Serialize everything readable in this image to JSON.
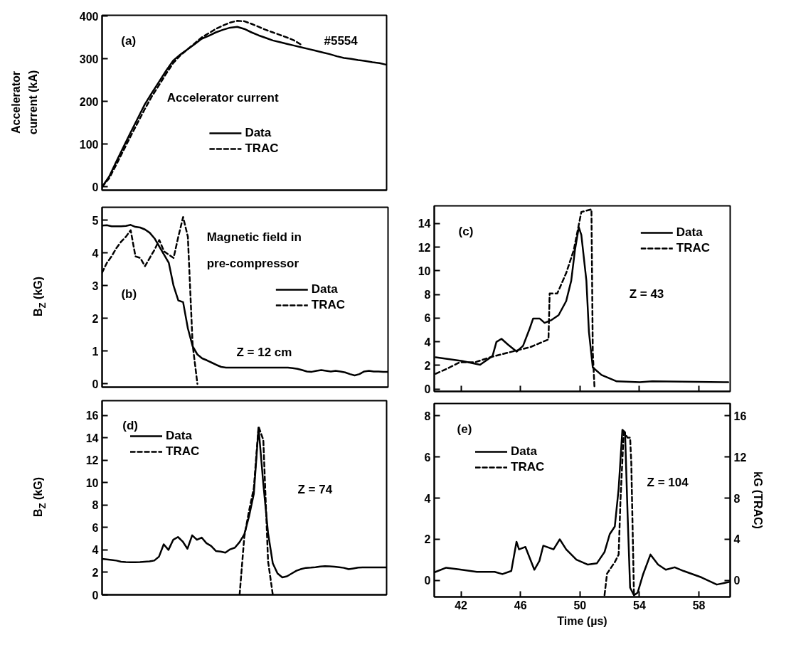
{
  "chart_data": [
    {
      "type": "line",
      "ylabel": "Accelerator current (kA)",
      "annotations": [
        "(a)",
        "#5554",
        "Accelerator current"
      ],
      "categories": [
        null,
        null,
        null,
        null,
        null,
        null,
        null,
        null,
        null,
        null,
        null,
        null,
        null,
        null,
        null,
        null,
        null,
        null,
        null,
        null,
        null,
        null,
        null,
        null,
        null,
        null,
        null,
        null,
        null,
        null,
        null,
        null,
        null,
        null,
        null,
        null,
        null,
        null,
        null,
        null,
        null
      ],
      "ylim": [
        -8,
        402
      ],
      "yticks": [
        0,
        100,
        200,
        300,
        400
      ],
      "tick_labels": "y",
      "legend": "bottom",
      "series": [
        {
          "name": "Data",
          "color": "#000000",
          "line_style": "solid",
          "values": [
            0,
            24,
            59,
            93,
            127,
            160,
            193,
            220,
            246,
            272,
            296,
            310,
            322,
            334,
            347,
            354,
            362,
            368,
            373,
            375,
            370,
            362,
            355,
            349,
            343,
            339,
            335,
            331,
            327,
            323,
            319,
            315,
            311,
            306,
            302,
            300,
            297,
            295,
            292,
            290,
            286
          ]
        },
        {
          "name": "TRAC",
          "color": "#000000",
          "line_style": "dashed",
          "values": [
            0,
            20,
            52,
            85,
            118,
            150,
            182,
            212,
            238,
            265,
            290,
            308,
            322,
            336,
            350,
            360,
            370,
            378,
            385,
            389,
            388,
            382,
            375,
            368,
            362,
            356,
            350,
            343,
            333,
            null,
            null,
            null,
            null,
            null,
            null,
            null,
            null,
            null,
            null,
            null,
            null
          ]
        }
      ]
    },
    {
      "type": "line",
      "ylabel": "B$_{Z}$ (kG)",
      "annotations": [
        "(b)",
        "Magnetic field in",
        "pre-compressor",
        "Z = 12 cm"
      ],
      "categories": [
        null,
        null,
        null,
        null,
        null,
        null,
        null,
        null,
        null,
        null,
        null,
        null,
        null,
        null,
        null,
        null,
        null,
        null,
        null,
        null,
        null,
        null,
        null,
        null,
        null,
        null,
        null,
        null,
        null,
        null,
        null,
        null,
        null,
        null,
        null,
        null,
        null,
        null,
        null,
        null,
        null,
        null,
        null,
        null,
        null,
        null,
        null,
        null,
        null,
        null,
        null,
        null,
        null,
        null,
        null,
        null,
        null,
        null,
        null,
        null,
        null
      ],
      "ylim": [
        -0.1,
        5.4
      ],
      "yticks": [
        0,
        1,
        2,
        3,
        4,
        5
      ],
      "tick_labels": "y",
      "legend": "right",
      "series": [
        {
          "name": "Data",
          "color": "#000000",
          "line_style": "solid",
          "values": [
            4.84,
            4.85,
            4.82,
            4.82,
            4.82,
            4.83,
            4.86,
            4.8,
            4.78,
            4.72,
            4.62,
            4.45,
            4.2,
            3.95,
            3.7,
            3.0,
            2.55,
            2.5,
            1.7,
            1.15,
            0.9,
            0.78,
            0.72,
            0.65,
            0.58,
            0.52,
            0.5,
            0.5,
            0.5,
            0.5,
            0.5,
            0.5,
            0.5,
            0.5,
            0.5,
            0.5,
            0.5,
            0.5,
            0.5,
            0.5,
            0.48,
            0.46,
            0.42,
            0.38,
            0.37,
            0.4,
            0.42,
            0.4,
            0.38,
            0.4,
            0.38,
            0.35,
            0.3,
            0.26,
            0.3,
            0.38,
            0.4,
            0.38,
            0.38,
            0.37,
            0.37
          ]
        },
        {
          "name": "TRAC",
          "color": "#000000",
          "line_style": "dashed",
          "values": [
            3.4,
            3.7,
            3.9,
            4.15,
            4.35,
            4.5,
            4.7,
            3.9,
            3.85,
            3.6,
            3.85,
            4.1,
            4.4,
            4.05,
            3.95,
            3.85,
            4.5,
            5.1,
            4.5,
            1.2,
            0,
            null,
            null,
            null,
            null,
            null,
            null,
            null,
            null,
            null,
            null,
            null,
            null,
            null,
            null,
            null,
            null,
            null,
            null,
            null,
            null,
            null,
            null,
            null,
            null,
            null,
            null,
            null,
            null,
            null,
            null,
            null,
            null,
            null,
            null,
            null,
            null,
            null,
            null,
            null,
            null
          ]
        }
      ]
    },
    {
      "type": "line",
      "annotations": [
        "(c)",
        "Z = 43"
      ],
      "xlim": [
        40.2,
        60.1
      ],
      "xticks": [
        42,
        46,
        50,
        54,
        58
      ],
      "ylim": [
        -0.2,
        15.5
      ],
      "yticks": [
        0,
        2,
        4,
        6,
        8,
        10,
        12,
        14
      ],
      "tick_labels": "y",
      "legend": "top right",
      "series": [
        {
          "name": "Data",
          "color": "#000000",
          "line_style": "solid",
          "x": [
            40.3,
            42.09,
            43.28,
            44.12,
            44.38,
            44.72,
            45.15,
            45.74,
            46.17,
            46.6,
            46.85,
            47.28,
            47.62,
            48.05,
            48.56,
            49.07,
            49.41,
            49.66,
            49.92,
            50.09,
            50.43,
            50.6,
            50.86,
            51.45,
            52.47,
            54.01,
            54.86,
            59.97
          ],
          "values": [
            2.69,
            2.37,
            2.05,
            2.8,
            3.99,
            4.25,
            3.77,
            3.17,
            3.66,
            5.06,
            5.97,
            5.97,
            5.6,
            5.82,
            6.25,
            7.44,
            9.16,
            11.75,
            13.69,
            13.04,
            9.16,
            4.85,
            1.83,
            1.19,
            0.65,
            0.58,
            0.65,
            0.58
          ]
        },
        {
          "name": "TRAC",
          "color": "#000000",
          "line_style": "dashed",
          "x": [
            40.3,
            41.23,
            41.91,
            42.93,
            43.96,
            45.32,
            46.68,
            47.88,
            47.96,
            48.47,
            49.07,
            49.58,
            50.09,
            50.77,
            50.86,
            50.98
          ],
          "values": [
            1.29,
            1.83,
            2.26,
            2.26,
            2.69,
            3.13,
            3.56,
            4.2,
            8.08,
            8.08,
            9.81,
            11.75,
            14.98,
            15.2,
            3.13,
            0
          ]
        }
      ]
    },
    {
      "type": "line",
      "ylabel": "B$_{Z}$ (kG)",
      "annotations": [
        "(d)",
        "Z = 74"
      ],
      "categories": [
        null,
        null,
        null,
        null,
        null,
        null,
        null,
        null,
        null,
        null,
        null,
        null,
        null,
        null,
        null,
        null,
        null,
        null,
        null,
        null,
        null,
        null,
        null,
        null,
        null,
        null,
        null,
        null,
        null,
        null,
        null,
        null,
        null,
        null,
        null,
        null,
        null,
        null,
        null,
        null,
        null,
        null,
        null,
        null,
        null,
        null,
        null,
        null,
        null,
        null,
        null,
        null,
        null,
        null,
        null,
        null,
        null,
        null,
        null,
        null,
        null
      ],
      "ylim": [
        0,
        17.3
      ],
      "yticks": [
        0,
        2,
        4,
        6,
        8,
        10,
        12,
        14,
        16
      ],
      "tick_labels": "y",
      "legend": "top left",
      "series": [
        {
          "name": "Data",
          "color": "#000000",
          "line_style": "solid",
          "values": [
            3.2,
            3.15,
            3.1,
            3.05,
            2.95,
            2.92,
            2.9,
            2.9,
            2.92,
            2.95,
            2.98,
            3.05,
            3.4,
            4.5,
            4.0,
            4.9,
            5.15,
            4.75,
            4.1,
            5.3,
            4.9,
            5.1,
            4.6,
            4.35,
            3.9,
            3.85,
            3.75,
            4.05,
            4.2,
            4.7,
            5.4,
            7.0,
            9.0,
            14.9,
            9.9,
            5.5,
            2.8,
            1.9,
            1.55,
            1.65,
            1.9,
            2.15,
            2.3,
            2.4,
            2.42,
            2.45,
            2.52,
            2.55,
            2.53,
            2.5,
            2.45,
            2.4,
            2.28,
            2.35,
            2.42,
            2.44,
            2.44,
            2.44,
            2.44,
            2.44,
            2.44
          ]
        },
        {
          "name": "TRAC",
          "color": "#000000",
          "line_style": "dashed",
          "values": [
            null,
            null,
            null,
            null,
            null,
            null,
            null,
            null,
            null,
            null,
            null,
            null,
            null,
            null,
            null,
            null,
            null,
            null,
            null,
            null,
            null,
            null,
            null,
            null,
            null,
            null,
            null,
            null,
            null,
            0,
            5.2,
            7.5,
            9.5,
            15.0,
            13.8,
            3.0,
            0,
            null,
            null,
            null,
            null,
            null,
            null,
            null,
            null,
            null,
            null,
            null,
            null,
            null,
            null,
            null,
            null,
            null,
            null,
            null,
            null,
            null,
            null,
            null,
            null
          ]
        }
      ]
    },
    {
      "type": "line",
      "xlabel": "Time (µs)",
      "y2label": "kG (TRAC)",
      "annotations": [
        "(e)",
        "Z = 104"
      ],
      "xlim": [
        40.2,
        60.1
      ],
      "xticks": [
        42,
        46,
        50,
        54,
        58
      ],
      "ylim": [
        -0.8,
        8.6
      ],
      "yticks": [
        0,
        2,
        4,
        6,
        8
      ],
      "y2lim": [
        -1.6,
        17.2
      ],
      "y2ticks": [
        0,
        4,
        8,
        12,
        16
      ],
      "legend": "top left",
      "series": [
        {
          "name": "Data",
          "color": "#000000",
          "line_style": "solid",
          "x": [
            40.23,
            41.0,
            41.86,
            43.06,
            44.26,
            44.78,
            45.38,
            45.73,
            45.9,
            46.33,
            46.93,
            47.27,
            47.53,
            48.22,
            48.64,
            49.07,
            49.76,
            50.53,
            51.13,
            51.65,
            52.0,
            52.34,
            52.6,
            52.85,
            53.03,
            53.2,
            53.37,
            53.63,
            53.88,
            54.23,
            54.74,
            55.25,
            55.77,
            56.37,
            56.97,
            58.17,
            59.2,
            60.06
          ],
          "values": [
            0.4,
            0.62,
            0.54,
            0.42,
            0.42,
            0.31,
            0.46,
            1.88,
            1.51,
            1.63,
            0.52,
            0.95,
            1.69,
            1.51,
            2.0,
            1.51,
            1.01,
            0.77,
            0.83,
            1.38,
            2.25,
            2.62,
            4.47,
            7.32,
            7.2,
            3.24,
            -0.35,
            -0.72,
            -0.59,
            0.27,
            1.26,
            0.77,
            0.52,
            0.64,
            0.46,
            0.15,
            -0.2,
            -0.07
          ]
        },
        {
          "name": "TRAC",
          "color": "#000000",
          "line_style": "dashed",
          "axis": "y2",
          "x": [
            51.65,
            51.82,
            52.34,
            52.6,
            52.72,
            52.94,
            53.2,
            53.37,
            53.45,
            53.63
          ],
          "values": [
            -1.43,
            0.67,
            1.78,
            2.52,
            7.71,
            14.39,
            13.89,
            13.89,
            11.42,
            -1.43
          ]
        }
      ]
    }
  ]
}
